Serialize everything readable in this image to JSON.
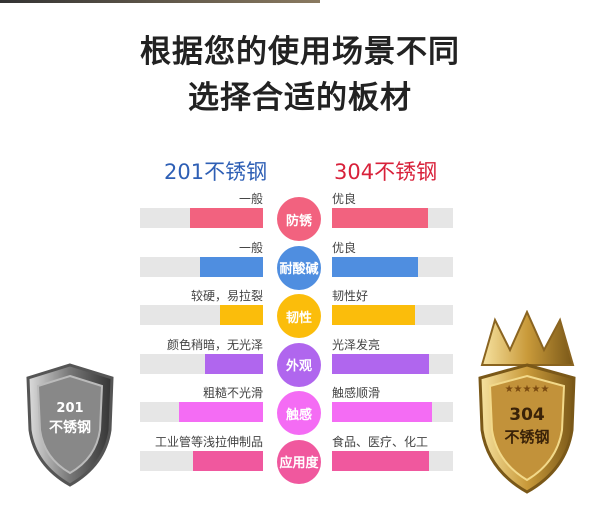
{
  "title_line1": "根据您的使用场景不同",
  "title_line2": "选择合适的板材",
  "left_heading": "201不锈钢",
  "right_heading": "304不锈钢",
  "left_color": "#2e5fb5",
  "right_color": "#d8213a",
  "rows": [
    {
      "category": "防锈",
      "left_label": "一般",
      "right_label": "优良",
      "left_level": 0.59,
      "right_level": 0.79,
      "color": "#f2627f"
    },
    {
      "category": "耐酸碱",
      "left_label": "一般",
      "right_label": "优良",
      "left_level": 0.51,
      "right_level": 0.71,
      "color": "#4f8ee0"
    },
    {
      "category": "韧性",
      "left_label": "较硬，易拉裂",
      "right_label": "韧性好",
      "left_level": 0.35,
      "right_level": 0.69,
      "color": "#fbbd0b"
    },
    {
      "category": "外观",
      "left_label": "颜色稍暗，无光泽",
      "right_label": "光泽发亮",
      "left_level": 0.47,
      "right_level": 0.8,
      "color": "#b066ee"
    },
    {
      "category": "触感",
      "left_label": "粗糙不光滑",
      "right_label": "触感顺滑",
      "left_level": 0.68,
      "right_level": 0.83,
      "color": "#f46cf4"
    },
    {
      "category": "应用度",
      "left_label": "工业管等浅拉伸制品",
      "right_label": "食品、医疗、化工",
      "left_level": 0.57,
      "right_level": 0.8,
      "color": "#f0589e"
    }
  ],
  "shield_left": {
    "line1": "201",
    "line2": "不锈钢"
  },
  "shield_right": {
    "line1": "304",
    "line2": "不锈钢"
  }
}
